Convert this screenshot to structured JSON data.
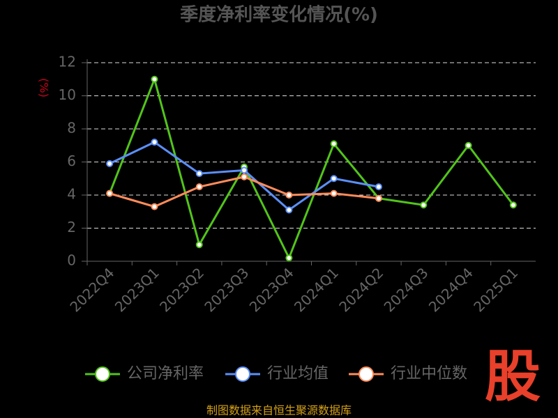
{
  "chart_data": {
    "type": "line",
    "title": "季度净利率变化情况(%)",
    "y_label": "(%)",
    "categories": [
      "2022Q4",
      "2023Q1",
      "2023Q2",
      "2023Q3",
      "2023Q4",
      "2024Q1",
      "2024Q2",
      "2024Q3",
      "2024Q4",
      "2025Q1"
    ],
    "series": [
      {
        "name": "公司净利率",
        "color": "#52c41a",
        "values": [
          4.1,
          11.0,
          1.0,
          5.7,
          0.2,
          7.1,
          3.8,
          3.4,
          7.0,
          3.4
        ]
      },
      {
        "name": "行业均值",
        "color": "#5b8ff9",
        "values": [
          5.9,
          7.2,
          5.3,
          5.5,
          3.1,
          5.0,
          4.5,
          null,
          null,
          null
        ]
      },
      {
        "name": "行业中位数",
        "color": "#ff8c5a",
        "values": [
          4.1,
          3.3,
          4.5,
          5.1,
          4.0,
          4.1,
          3.8,
          null,
          null,
          null
        ]
      }
    ],
    "ylim": [
      0,
      12
    ],
    "yticks": [
      0,
      2,
      4,
      6,
      8,
      10,
      12
    ],
    "grid": true,
    "source": "制图数据来自恒生聚源数据库",
    "watermark": "股"
  }
}
